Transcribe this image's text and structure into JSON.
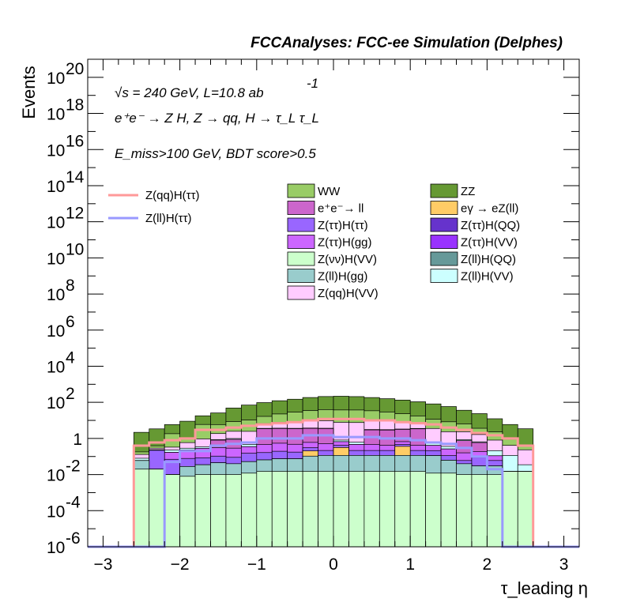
{
  "chart_data": {
    "type": "area",
    "title": "FCCAnalyses: FCC-ee Simulation (Delphes)",
    "annotations": {
      "sqrt_s": "√s = 240 GeV, L=10.8 ab",
      "lumi_exp": "-1",
      "process": "e⁺e⁻ → Z H, Z → qq, H → τ_L τ_L",
      "cuts": "E_miss>100 GeV, BDT score>0.5"
    },
    "xlabel": "τ_leading η",
    "ylabel": "Events",
    "xlim": [
      -3.2,
      3.2
    ],
    "y_scale": "log",
    "ylim": [
      1e-06,
      1e+21
    ],
    "x_ticks": [
      "−3",
      "−2",
      "−1",
      "0",
      "1",
      "2",
      "3"
    ],
    "y_ticks": [
      {
        "base": "10",
        "exp": "20"
      },
      {
        "base": "10",
        "exp": "18"
      },
      {
        "base": "10",
        "exp": "16"
      },
      {
        "base": "10",
        "exp": "14"
      },
      {
        "base": "10",
        "exp": "12"
      },
      {
        "base": "10",
        "exp": "10"
      },
      {
        "base": "10",
        "exp": "8"
      },
      {
        "base": "10",
        "exp": "6"
      },
      {
        "base": "10",
        "exp": "4"
      },
      {
        "base": "10",
        "exp": "2"
      },
      {
        "base": "1",
        "exp": ""
      },
      {
        "base": "10",
        "exp": "-2"
      },
      {
        "base": "10",
        "exp": "-4"
      },
      {
        "base": "10",
        "exp": "-6"
      }
    ],
    "bin_edges": [
      -2.6,
      -2.4,
      -2.2,
      -2.0,
      -1.8,
      -1.6,
      -1.4,
      -1.2,
      -1.0,
      -0.8,
      -0.6,
      -0.4,
      -0.2,
      0.0,
      0.2,
      0.4,
      0.6,
      0.8,
      1.0,
      1.2,
      1.4,
      1.6,
      1.8,
      2.0,
      2.2,
      2.4,
      2.6
    ],
    "stack": [
      {
        "name": "Z(νν)H(VV)",
        "color": "#ccffcc",
        "values": [
          0.02,
          0.02,
          0.01,
          0.008,
          0.01,
          0.01,
          0.01,
          0.012,
          0.015,
          0.015,
          0.015,
          0.015,
          0.015,
          0.015,
          0.015,
          0.015,
          0.015,
          0.015,
          0.015,
          0.012,
          0.012,
          0.01,
          0.01,
          0.01,
          0.015,
          0.015
        ]
      },
      {
        "name": "Z(ll)H(gg)",
        "color": "#99cccc",
        "values": [
          0.04,
          1e-06,
          1e-06,
          0.02,
          0.025,
          0.035,
          0.03,
          0.04,
          0.05,
          0.06,
          0.06,
          0.09,
          0.1,
          0.1,
          0.1,
          0.1,
          0.1,
          0.1,
          0.1,
          0.1,
          0.05,
          0.03,
          0.02,
          0.02,
          1e-06,
          1e-06
        ]
      },
      {
        "name": "eγ → eZ(ll)",
        "color": "#ffcc66",
        "values": [
          0,
          0,
          0,
          0,
          0,
          0,
          0,
          0,
          0,
          0,
          0,
          0.1,
          0,
          0.2,
          0,
          0,
          0,
          0.25,
          0,
          0,
          0,
          0,
          0,
          0,
          0,
          0
        ]
      },
      {
        "name": "Z(ττ)H(ττ)",
        "color": "#9966ff",
        "values": [
          0,
          0.2,
          0.06,
          0.05,
          0.05,
          0.06,
          0.05,
          0.1,
          0.1,
          0.12,
          0.1,
          0.1,
          0.1,
          0.1,
          0.1,
          0.1,
          0.1,
          0.1,
          0.1,
          0.1,
          0.05,
          0.02,
          0.06,
          0.03,
          0,
          0
        ]
      },
      {
        "name": "Z(ττ)H(gg)",
        "color": "#cc66ff",
        "values": [
          0,
          0,
          0.1,
          0.15,
          0.2,
          0.2,
          0.2,
          0.2,
          0.3,
          0.35,
          0.3,
          0.3,
          0.3,
          0.25,
          0.25,
          0.25,
          0.2,
          0.2,
          0.2,
          0.2,
          0.15,
          0.1,
          0.1,
          0.05,
          0,
          0
        ]
      },
      {
        "name": "e⁺e⁻→ ll",
        "color": "#cc66cc",
        "values": [
          0,
          0,
          0,
          0,
          0,
          0.5,
          0.6,
          0,
          3,
          3,
          3,
          3,
          3,
          0,
          0,
          2.5,
          2.5,
          2.5,
          3,
          0,
          0,
          0.6,
          0.4,
          0,
          0,
          0
        ]
      },
      {
        "name": "Z(ll)H(VV)",
        "color": "#ccffff",
        "values": [
          0.02,
          0.02,
          0.06,
          0.06,
          0.06,
          0.06,
          0.1,
          0.12,
          0.15,
          0.15,
          0.15,
          0.15,
          0.15,
          0.15,
          0.15,
          0.15,
          0.15,
          0.15,
          0.15,
          0.15,
          0.1,
          0.1,
          0.06,
          0.1,
          0.1,
          0.02
        ]
      },
      {
        "name": "Z(qq)H(VV)",
        "color": "#ffccff",
        "values": [
          0.05,
          0.05,
          0.1,
          0.3,
          0.6,
          1,
          1.5,
          2,
          3,
          4,
          5,
          6,
          6,
          7,
          7,
          6,
          6,
          5,
          4,
          3,
          2,
          1.5,
          1,
          0.6,
          0.3,
          0.2
        ]
      },
      {
        "name": "WW",
        "color": "#99cc66",
        "values": [
          0.05,
          0.1,
          1.5,
          0.4,
          5,
          4,
          6,
          8,
          10,
          15,
          20,
          25,
          30,
          30,
          30,
          25,
          20,
          15,
          10,
          8,
          6,
          4,
          2,
          1.5,
          0.5,
          0.2
        ]
      },
      {
        "name": "ZZ",
        "color": "#669933",
        "values": [
          2,
          3,
          4,
          8,
          12,
          20,
          40,
          60,
          80,
          100,
          120,
          150,
          170,
          180,
          170,
          150,
          130,
          110,
          90,
          70,
          50,
          30,
          20,
          10,
          5,
          3
        ]
      }
    ],
    "overlays": [
      {
        "name": "Z(qq)H(ττ)",
        "color": "#ff9999",
        "values": [
          0.4,
          0.6,
          0.8,
          1,
          3,
          3,
          4,
          5,
          6,
          7,
          8,
          10,
          12,
          12,
          12,
          10,
          10,
          8,
          7,
          6,
          4,
          3,
          2,
          1.5,
          1,
          0.4
        ]
      },
      {
        "name": "Z(ll)H(ττ)",
        "color": "#9999ff",
        "values": [
          1e-06,
          1e-06,
          0.05,
          0.2,
          0.2,
          0.4,
          0.5,
          0.6,
          1,
          1,
          1,
          1.5,
          1.5,
          1.2,
          1.2,
          1.2,
          1,
          1,
          0.8,
          0.6,
          0.5,
          0.3,
          0.1,
          0.02,
          1e-06,
          1e-06
        ]
      }
    ],
    "legend": {
      "line_entries": [
        "Z(qq)H(ττ)",
        "Z(ll)H(ττ)"
      ],
      "fill_entries": [
        {
          "label": "WW",
          "color": "#99cc66"
        },
        {
          "label": "ZZ",
          "color": "#669933"
        },
        {
          "label": "e⁺e⁻→ ll",
          "color": "#cc66cc"
        },
        {
          "label": "eγ → eZ(ll)",
          "color": "#ffcc66"
        },
        {
          "label": "Z(ττ)H(ττ)",
          "color": "#9966ff"
        },
        {
          "label": "Z(ττ)H(QQ)",
          "color": "#6633cc"
        },
        {
          "label": "Z(ττ)H(gg)",
          "color": "#cc66ff"
        },
        {
          "label": "Z(ττ)H(VV)",
          "color": "#9933ff"
        },
        {
          "label": "Z(νν)H(VV)",
          "color": "#ccffcc"
        },
        {
          "label": "Z(ll)H(QQ)",
          "color": "#669999"
        },
        {
          "label": "Z(ll)H(gg)",
          "color": "#99cccc"
        },
        {
          "label": "Z(ll)H(VV)",
          "color": "#ccffff"
        },
        {
          "label": "Z(qq)H(VV)",
          "color": "#ffccff"
        }
      ],
      "placement": "upper-middle"
    }
  }
}
